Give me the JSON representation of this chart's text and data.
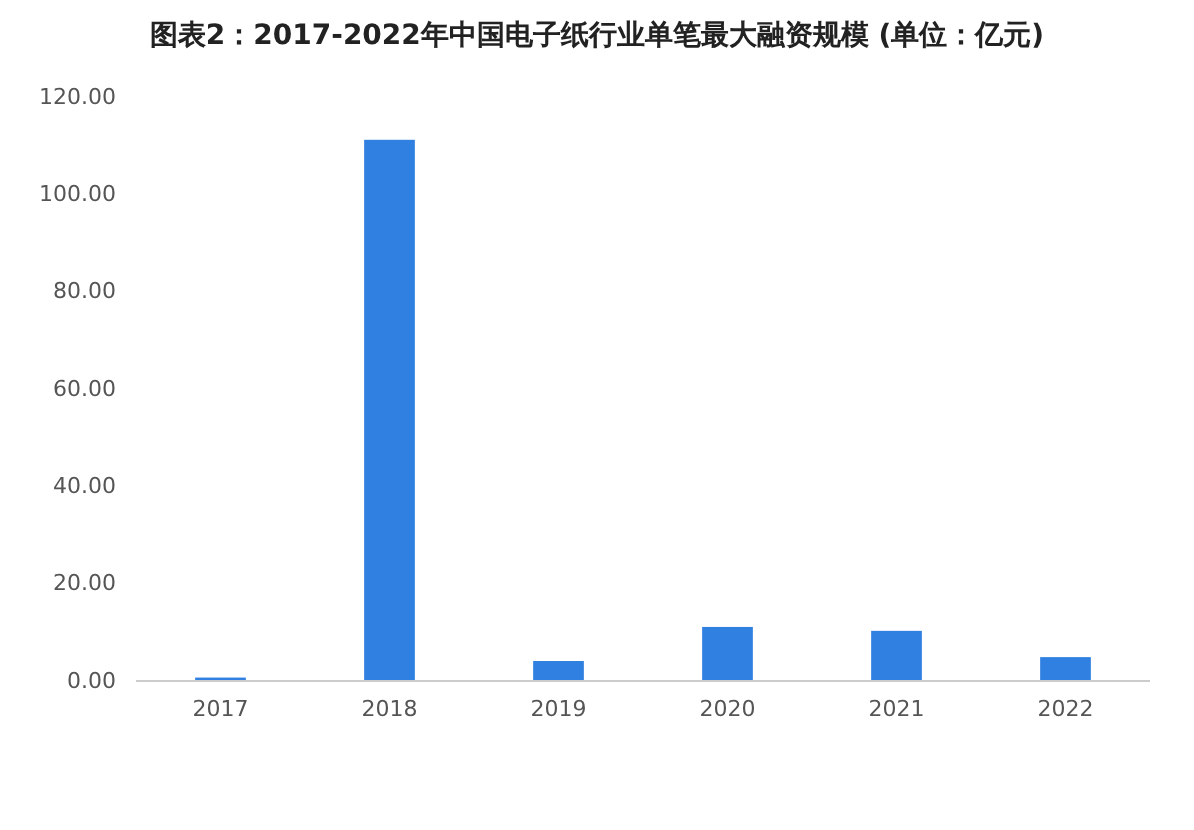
{
  "chart_data": {
    "type": "bar",
    "title": "图表2：2017-2022年中国电子纸行业单笔最大融资规模 (单位：亿元)",
    "categories": [
      "2017",
      "2018",
      "2019",
      "2020",
      "2021",
      "2022"
    ],
    "values": [
      0.5,
      111,
      3.9,
      10.9,
      10.1,
      4.7
    ],
    "color": "#2f80e0",
    "ylim": [
      0,
      120
    ],
    "yticks": [
      {
        "value": 0,
        "label": "0.00"
      },
      {
        "value": 20,
        "label": "20.00"
      },
      {
        "value": 40,
        "label": "40.00"
      },
      {
        "value": 60,
        "label": "60.00"
      },
      {
        "value": 80,
        "label": "80.00"
      },
      {
        "value": 100,
        "label": "100.00"
      },
      {
        "value": 120,
        "label": "120.00"
      }
    ],
    "grid": false
  }
}
